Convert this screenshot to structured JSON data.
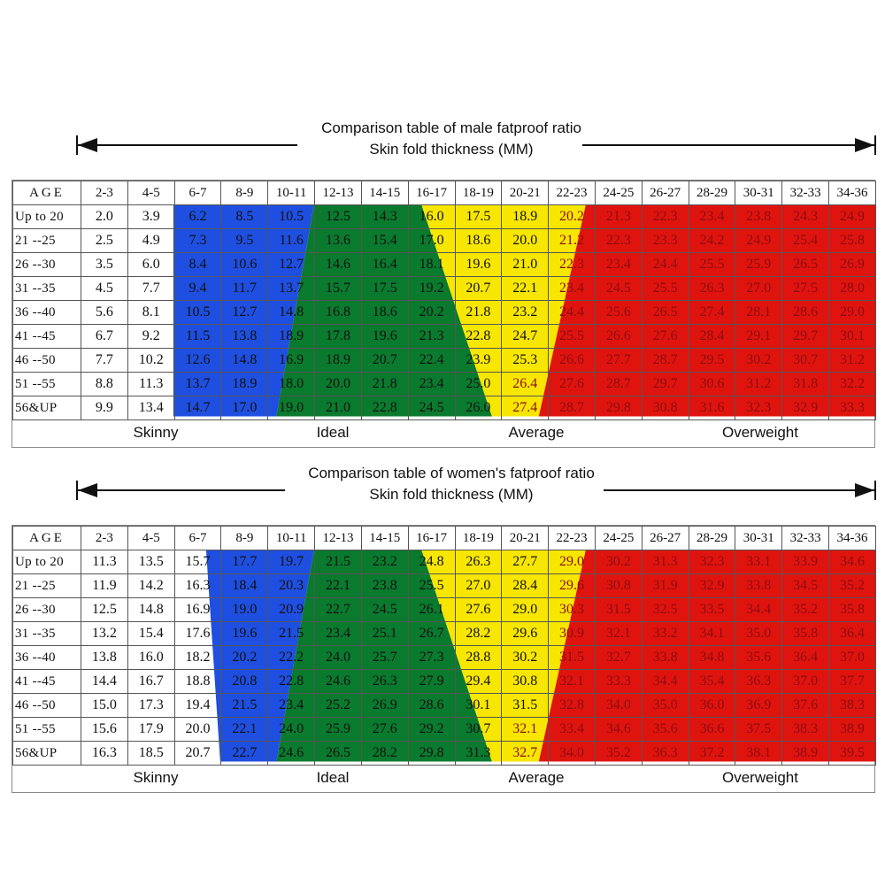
{
  "columns": [
    "2-3",
    "4-5",
    "6-7",
    "8-9",
    "10-11",
    "12-13",
    "14-15",
    "16-17",
    "18-19",
    "20-21",
    "22-23",
    "24-25",
    "26-27",
    "28-29",
    "30-31",
    "32-33",
    "34-36"
  ],
  "age_header": "AGE",
  "ages": [
    "Up to 20",
    "21 --25",
    "26 --30",
    "31 --35",
    "36 --40",
    "41 --45",
    "46 --50",
    "51 --55",
    "56&UP"
  ],
  "categories": [
    "Skinny",
    "Ideal",
    "Average",
    "Overweight"
  ],
  "colors": {
    "skinny": "#1f4fe0",
    "ideal": "#0a7a2e",
    "average": "#f7e600",
    "overweight": "#e0140f"
  },
  "chart_data": [
    {
      "type": "table",
      "title": "Comparison table of male fatproof ratio",
      "subtitle": "Skin fold thickness (MM)",
      "rows": [
        [
          "2.0",
          "3.9",
          "6.2",
          "8.5",
          "10.5",
          "12.5",
          "14.3",
          "16.0",
          "17.5",
          "18.9",
          "20.2",
          "21.3",
          "22.3",
          "23.4",
          "23.8",
          "24.3",
          "24.9"
        ],
        [
          "2.5",
          "4.9",
          "7.3",
          "9.5",
          "11.6",
          "13.6",
          "15.4",
          "17.0",
          "18.6",
          "20.0",
          "21.2",
          "22.3",
          "23.3",
          "24.2",
          "24.9",
          "25.4",
          "25.8"
        ],
        [
          "3.5",
          "6.0",
          "8.4",
          "10.6",
          "12.7",
          "14.6",
          "16.4",
          "18.1",
          "19.6",
          "21.0",
          "22.3",
          "23.4",
          "24.4",
          "25.5",
          "25.9",
          "26.5",
          "26.9"
        ],
        [
          "4.5",
          "7.7",
          "9.4",
          "11.7",
          "13.7",
          "15.7",
          "17.5",
          "19.2",
          "20.7",
          "22.1",
          "23.4",
          "24.5",
          "25.5",
          "26.3",
          "27.0",
          "27.5",
          "28.0"
        ],
        [
          "5.6",
          "8.1",
          "10.5",
          "12.7",
          "14.8",
          "16.8",
          "18.6",
          "20.2",
          "21.8",
          "23.2",
          "24.4",
          "25.6",
          "26.5",
          "27.4",
          "28.1",
          "28.6",
          "29.0"
        ],
        [
          "6.7",
          "9.2",
          "11.5",
          "13.8",
          "18.9",
          "17.8",
          "19.6",
          "21.3",
          "22.8",
          "24.7",
          "25.5",
          "26.6",
          "27.6",
          "28.4",
          "29.1",
          "29.7",
          "30.1"
        ],
        [
          "7.7",
          "10.2",
          "12.6",
          "14.8",
          "16.9",
          "18.9",
          "20.7",
          "22.4",
          "23.9",
          "25.3",
          "26.6",
          "27.7",
          "28.7",
          "29.5",
          "30.2",
          "30.7",
          "31.2"
        ],
        [
          "8.8",
          "11.3",
          "13.7",
          "18.9",
          "18.0",
          "20.0",
          "21.8",
          "23.4",
          "25.0",
          "26.4",
          "27.6",
          "28.7",
          "29.7",
          "30.6",
          "31.2",
          "31.8",
          "32.2"
        ],
        [
          "9.9",
          "13.4",
          "14.7",
          "17.0",
          "19.0",
          "21.0",
          "22.8",
          "24.5",
          "26.0",
          "27.4",
          "28.7",
          "29.8",
          "30.8",
          "31.6",
          "32.3",
          "32.9",
          "33.3"
        ]
      ],
      "boundaries": [
        [
          2,
          2,
          2,
          2,
          2,
          2,
          2,
          2,
          2
        ],
        [
          5,
          5,
          4.9,
          4.8,
          4.6,
          4.5,
          4.4,
          4.3,
          4.2
        ],
        [
          7.3,
          7.5,
          7.7,
          7.9,
          8.0,
          8.2,
          8.4,
          8.6,
          8.8
        ],
        [
          10.8,
          10.6,
          10.5,
          10.4,
          10.3,
          10.1,
          10.0,
          9.9,
          9.8
        ]
      ]
    },
    {
      "type": "table",
      "title": "Comparison table of women's fatproof ratio",
      "subtitle": "Skin fold thickness (MM)",
      "rows": [
        [
          "11.3",
          "13.5",
          "15.7",
          "17.7",
          "19.7",
          "21.5",
          "23.2",
          "24.8",
          "26.3",
          "27.7",
          "29.0",
          "30.2",
          "31.3",
          "32.3",
          "33.1",
          "33.9",
          "34.6"
        ],
        [
          "11.9",
          "14.2",
          "16.3",
          "18.4",
          "20.3",
          "22.1",
          "23.8",
          "25.5",
          "27.0",
          "28.4",
          "29.6",
          "30.8",
          "31.9",
          "32.9",
          "33.8",
          "34.5",
          "35.2"
        ],
        [
          "12.5",
          "14.8",
          "16.9",
          "19.0",
          "20.9",
          "22.7",
          "24.5",
          "26.1",
          "27.6",
          "29.0",
          "30.3",
          "31.5",
          "32.5",
          "33.5",
          "34.4",
          "35.2",
          "35.8"
        ],
        [
          "13.2",
          "15.4",
          "17.6",
          "19.6",
          "21.5",
          "23.4",
          "25.1",
          "26.7",
          "28.2",
          "29.6",
          "30.9",
          "32.1",
          "33.2",
          "34.1",
          "35.0",
          "35.8",
          "36.4"
        ],
        [
          "13.8",
          "16.0",
          "18.2",
          "20.2",
          "22.2",
          "24.0",
          "25.7",
          "27.3",
          "28.8",
          "30.2",
          "31.5",
          "32.7",
          "33.8",
          "34.8",
          "35.6",
          "36.4",
          "37.0"
        ],
        [
          "14.4",
          "16.7",
          "18.8",
          "20.8",
          "22.8",
          "24.6",
          "26.3",
          "27.9",
          "29.4",
          "30.8",
          "32.1",
          "33.3",
          "34.4",
          "35.4",
          "36.3",
          "37.0",
          "37.7"
        ],
        [
          "15.0",
          "17.3",
          "19.4",
          "21.5",
          "23.4",
          "25.2",
          "26.9",
          "28.6",
          "30.1",
          "31.5",
          "32.8",
          "34.0",
          "35.0",
          "36.0",
          "36.9",
          "37.6",
          "38.3"
        ],
        [
          "15.6",
          "17.9",
          "20.0",
          "22.1",
          "24.0",
          "25.9",
          "27.6",
          "29.2",
          "30.7",
          "32.1",
          "33.4",
          "34.6",
          "35.6",
          "36.6",
          "37.5",
          "38.3",
          "38.9"
        ],
        [
          "16.3",
          "18.5",
          "20.7",
          "22.7",
          "24.6",
          "26.5",
          "28.2",
          "29.8",
          "31.3",
          "32.7",
          "34.0",
          "35.2",
          "36.3",
          "37.2",
          "38.1",
          "38.9",
          "39.5"
        ]
      ],
      "boundaries": [
        [
          2.7,
          2.7,
          2.75,
          2.8,
          2.85,
          2.9,
          2.95,
          3.0,
          3.0
        ],
        [
          5,
          5,
          4.9,
          4.8,
          4.6,
          4.5,
          4.4,
          4.3,
          4.2
        ],
        [
          7.3,
          7.5,
          7.7,
          7.9,
          8.0,
          8.2,
          8.4,
          8.6,
          8.8
        ],
        [
          10.8,
          10.6,
          10.5,
          10.4,
          10.3,
          10.1,
          10.0,
          9.9,
          9.8
        ]
      ]
    }
  ]
}
